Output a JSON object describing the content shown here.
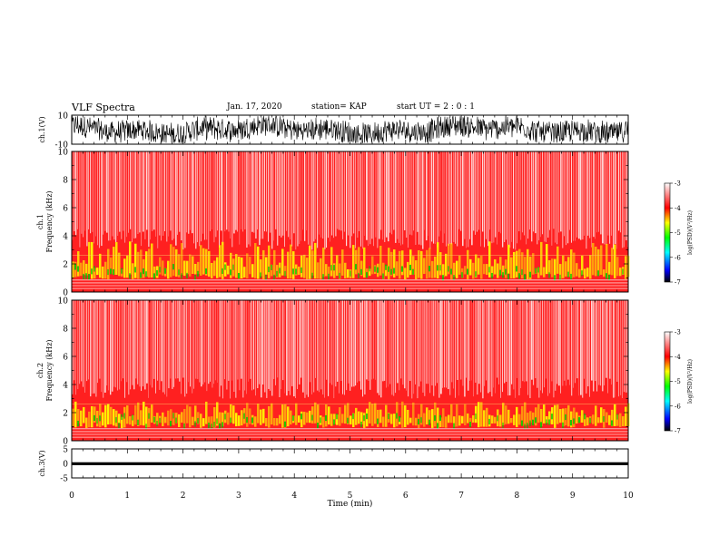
{
  "header": {
    "title": "VLF Spectra",
    "date": "Jan. 17, 2020",
    "station": "station= KAP",
    "start": "start UT =  2 : 0 : 1"
  },
  "colors": {
    "spectrogram_background": "#ff2020",
    "high_power": "#ffff00",
    "medium_power": "#00c800",
    "waveform": "#000000"
  },
  "chart_data": [
    {
      "type": "line",
      "ylabel": "ch.1(V)",
      "ylim": [
        -10,
        10
      ],
      "yticks": [
        "10",
        "-10"
      ],
      "xlim": [
        0,
        10
      ],
      "description_series": "ch.1 waveform"
    },
    {
      "type": "heatmap",
      "ylabel_channel": "ch.1",
      "ylabel": "Frequency (kHz)",
      "ylim": [
        0,
        10
      ],
      "yticks": [
        "0",
        "2",
        "4",
        "6",
        "8",
        "10"
      ],
      "xlim": [
        0,
        10
      ],
      "colorbar": {
        "label": "log(PSD)(V²/Hz)",
        "range": [
          -7,
          -3
        ],
        "ticks": [
          "-3",
          "-4",
          "-5",
          "-6",
          "-7"
        ]
      }
    },
    {
      "type": "heatmap",
      "ylabel_channel": "ch.2",
      "ylabel": "Frequency (kHz)",
      "ylim": [
        0,
        10
      ],
      "yticks": [
        "0",
        "2",
        "4",
        "6",
        "8",
        "10"
      ],
      "xlim": [
        0,
        10
      ],
      "colorbar": {
        "label": "log(PSD)(V²/Hz)",
        "range": [
          -7,
          -3
        ],
        "ticks": [
          "-3",
          "-4",
          "-5",
          "-6",
          "-7"
        ]
      }
    },
    {
      "type": "line",
      "ylabel": "ch.3(V)",
      "ylim": [
        -5,
        5
      ],
      "yticks": [
        "5",
        "0",
        "-5"
      ],
      "xlim": [
        0,
        10
      ],
      "xlabel": "Time (min)",
      "xticks": [
        "0",
        "1",
        "2",
        "3",
        "4",
        "5",
        "6",
        "7",
        "8",
        "9",
        "10"
      ]
    }
  ]
}
